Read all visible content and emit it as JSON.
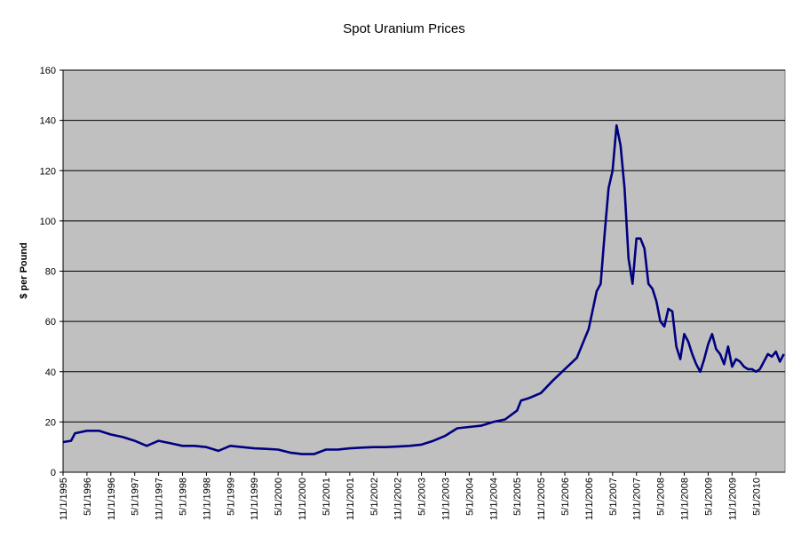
{
  "chart_data": {
    "type": "line",
    "title": "Spot Uranium Prices",
    "xlabel": "",
    "ylabel": "$ per Pound",
    "ylim": [
      0,
      160
    ],
    "yticks": [
      0,
      20,
      40,
      60,
      80,
      100,
      120,
      140,
      160
    ],
    "grid": true,
    "legend": "none",
    "plot_background": "#c0c0c0",
    "series_color": "#000080",
    "x_tick_labels": [
      "11/1/1995",
      "5/1/1996",
      "11/1/1996",
      "5/1/1997",
      "11/1/1997",
      "5/1/1998",
      "11/1/1998",
      "5/1/1999",
      "11/1/1999",
      "5/1/2000",
      "11/1/2000",
      "5/1/2001",
      "11/1/2001",
      "5/1/2002",
      "11/1/2002",
      "5/1/2003",
      "11/1/2003",
      "5/1/2004",
      "11/1/2004",
      "5/1/2005",
      "11/1/2005",
      "5/1/2006",
      "11/1/2006",
      "5/1/2007",
      "11/1/2007",
      "5/1/2008",
      "11/1/2008",
      "5/1/2009",
      "11/1/2009",
      "5/1/2010"
    ],
    "series": [
      {
        "x": [
          "1995-11",
          "1996-01",
          "1996-02",
          "1996-05",
          "1996-08",
          "1996-11",
          "1997-02",
          "1997-05",
          "1997-08",
          "1997-11",
          "1998-02",
          "1998-05",
          "1998-08",
          "1998-11",
          "1999-02",
          "1999-05",
          "1999-08",
          "1999-11",
          "2000-02",
          "2000-05",
          "2000-08",
          "2000-11",
          "2001-02",
          "2001-05",
          "2001-08",
          "2001-11",
          "2002-02",
          "2002-05",
          "2002-08",
          "2002-11",
          "2003-02",
          "2003-05",
          "2003-08",
          "2003-11",
          "2004-02",
          "2004-05",
          "2004-08",
          "2004-11",
          "2005-02",
          "2005-05",
          "2005-06",
          "2005-08",
          "2005-11",
          "2006-02",
          "2006-05",
          "2006-08",
          "2006-11",
          "2007-01",
          "2007-02",
          "2007-03",
          "2007-04",
          "2007-05",
          "2007-06",
          "2007-07",
          "2007-08",
          "2007-09",
          "2007-10",
          "2007-11",
          "2007-12",
          "2008-01",
          "2008-02",
          "2008-03",
          "2008-04",
          "2008-05",
          "2008-06",
          "2008-07",
          "2008-08",
          "2008-09",
          "2008-10",
          "2008-11",
          "2008-12",
          "2009-01",
          "2009-02",
          "2009-03",
          "2009-04",
          "2009-05",
          "2009-06",
          "2009-07",
          "2009-08",
          "2009-09",
          "2009-10",
          "2009-11",
          "2009-12",
          "2010-01",
          "2010-02",
          "2010-03",
          "2010-04",
          "2010-05",
          "2010-06",
          "2010-07",
          "2010-08",
          "2010-09",
          "2010-10",
          "2010-11",
          "2010-12"
        ],
        "y": [
          12,
          12.5,
          15.5,
          16.5,
          16.5,
          15,
          14,
          12.5,
          10.5,
          12.5,
          11.5,
          10.5,
          10.5,
          10,
          8.5,
          10.5,
          10,
          9.5,
          9.3,
          9,
          7.8,
          7.2,
          7.2,
          9,
          9,
          9.5,
          9.8,
          10,
          10,
          10.2,
          10.5,
          11,
          12.5,
          14.5,
          17.5,
          18,
          18.5,
          20,
          21,
          24.5,
          28.5,
          29.5,
          31.5,
          36.5,
          41,
          45.5,
          57,
          72,
          75,
          95,
          113,
          120,
          138,
          130,
          113,
          85,
          75,
          93,
          93,
          89,
          75,
          73,
          68,
          60,
          58,
          65,
          64,
          50,
          45,
          55,
          52,
          47,
          43,
          40,
          45,
          51,
          55,
          49,
          47,
          43,
          50,
          42,
          45,
          44,
          42,
          41,
          41,
          40,
          41,
          44,
          47,
          46,
          48,
          44,
          47
        ]
      }
    ]
  }
}
